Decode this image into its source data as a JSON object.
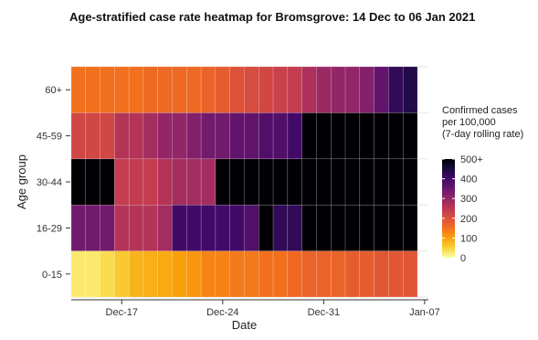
{
  "chart_data": {
    "type": "heatmap",
    "title": "Age-stratified case rate heatmap for Bromsgrove: 14 Dec to 06 Jan 2021",
    "xlabel": "Date",
    "ylabel": "Age group",
    "x_dates": [
      "2020-12-14",
      "2020-12-15",
      "2020-12-16",
      "2020-12-17",
      "2020-12-18",
      "2020-12-19",
      "2020-12-20",
      "2020-12-21",
      "2020-12-22",
      "2020-12-23",
      "2020-12-24",
      "2020-12-25",
      "2020-12-26",
      "2020-12-27",
      "2020-12-28",
      "2020-12-29",
      "2020-12-30",
      "2020-12-31",
      "2021-01-01",
      "2021-01-02",
      "2021-01-03",
      "2021-01-04",
      "2021-01-05",
      "2021-01-06"
    ],
    "x_ticks": [
      "Dec-17",
      "Dec-24",
      "Dec-31",
      "Jan-07"
    ],
    "y_categories": [
      "0-15",
      "16-29",
      "30-44",
      "45-59",
      "60+"
    ],
    "values": [
      [
        25,
        25,
        40,
        60,
        80,
        85,
        90,
        100,
        110,
        130,
        130,
        140,
        140,
        150,
        150,
        160,
        170,
        170,
        170,
        180,
        180,
        190,
        190,
        190
      ],
      [
        340,
        340,
        340,
        260,
        260,
        260,
        280,
        400,
        400,
        400,
        400,
        400,
        380,
        500,
        420,
        420,
        500,
        500,
        500,
        500,
        500,
        500,
        500,
        500
      ],
      [
        500,
        500,
        500,
        240,
        240,
        240,
        260,
        280,
        280,
        280,
        500,
        500,
        500,
        500,
        500,
        500,
        500,
        500,
        500,
        500,
        500,
        500,
        500,
        500
      ],
      [
        220,
        220,
        220,
        260,
        260,
        280,
        300,
        300,
        320,
        340,
        340,
        360,
        360,
        380,
        380,
        400,
        500,
        500,
        500,
        500,
        500,
        500,
        500,
        500
      ],
      [
        150,
        150,
        150,
        150,
        150,
        160,
        160,
        160,
        160,
        170,
        180,
        200,
        210,
        220,
        230,
        240,
        270,
        290,
        300,
        300,
        320,
        360,
        420,
        440
      ]
    ],
    "legend": {
      "title_lines": [
        "Confirmed cases",
        "per 100,000",
        "(7-day rolling rate)"
      ],
      "ticks": [
        "500+",
        "400",
        "300",
        "200",
        "100",
        "0"
      ],
      "tick_values": [
        500,
        400,
        300,
        200,
        100,
        0
      ],
      "placement": "right"
    },
    "value_range": [
      0,
      500
    ],
    "colormap": "inferno"
  }
}
